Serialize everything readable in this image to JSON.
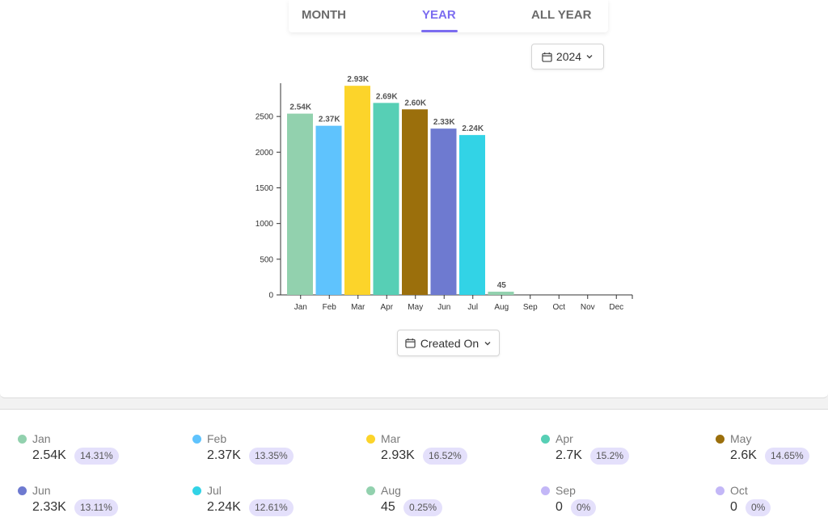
{
  "tabs": [
    {
      "label": "MONTH",
      "active": false
    },
    {
      "label": "YEAR",
      "active": true
    },
    {
      "label": "ALL YEAR",
      "active": false
    }
  ],
  "year_selector": {
    "value": "2024",
    "icon": "calendar-icon"
  },
  "field_selector": {
    "value": "Created On",
    "icon": "calendar-icon"
  },
  "chart_data": {
    "type": "bar",
    "categories": [
      "Jan",
      "Feb",
      "Mar",
      "Apr",
      "May",
      "Jun",
      "Jul",
      "Aug",
      "Sep",
      "Oct",
      "Nov",
      "Dec"
    ],
    "values": [
      2540,
      2370,
      2930,
      2690,
      2600,
      2330,
      2240,
      45,
      0,
      0,
      0,
      0
    ],
    "data_labels": [
      "2.54K",
      "2.37K",
      "2.93K",
      "2.69K",
      "2.60K",
      "2.33K",
      "2.24K",
      "45",
      "",
      "",
      "",
      ""
    ],
    "colors": [
      "#92d1ae",
      "#5fc3fd",
      "#fcd42a",
      "#57cfb5",
      "#9b6f0c",
      "#6e7ad0",
      "#32d3e6",
      "#92d1ae",
      "#c3b7f7",
      "#c3b7f7",
      "#c3b7f7",
      "#c3b7f7"
    ],
    "y_ticks": [
      0,
      500,
      1000,
      1500,
      2000,
      2500
    ],
    "ylim": [
      0,
      3000
    ],
    "grid": false
  },
  "legend": [
    {
      "name": "Jan",
      "value": "2.54K",
      "pct": "14.31%",
      "color": "#92d1ae"
    },
    {
      "name": "Feb",
      "value": "2.37K",
      "pct": "13.35%",
      "color": "#5fc3fd"
    },
    {
      "name": "Mar",
      "value": "2.93K",
      "pct": "16.52%",
      "color": "#fcd42a"
    },
    {
      "name": "Apr",
      "value": "2.7K",
      "pct": "15.2%",
      "color": "#57cfb5"
    },
    {
      "name": "May",
      "value": "2.6K",
      "pct": "14.65%",
      "color": "#9b6f0c"
    },
    {
      "name": "Jun",
      "value": "2.33K",
      "pct": "13.11%",
      "color": "#6e7ad0"
    },
    {
      "name": "Jul",
      "value": "2.24K",
      "pct": "12.61%",
      "color": "#32d3e6"
    },
    {
      "name": "Aug",
      "value": "45",
      "pct": "0.25%",
      "color": "#92d1ae"
    },
    {
      "name": "Sep",
      "value": "0",
      "pct": "0%",
      "color": "#c3b7f7"
    },
    {
      "name": "Oct",
      "value": "0",
      "pct": "0%",
      "color": "#c3b7f7"
    }
  ]
}
